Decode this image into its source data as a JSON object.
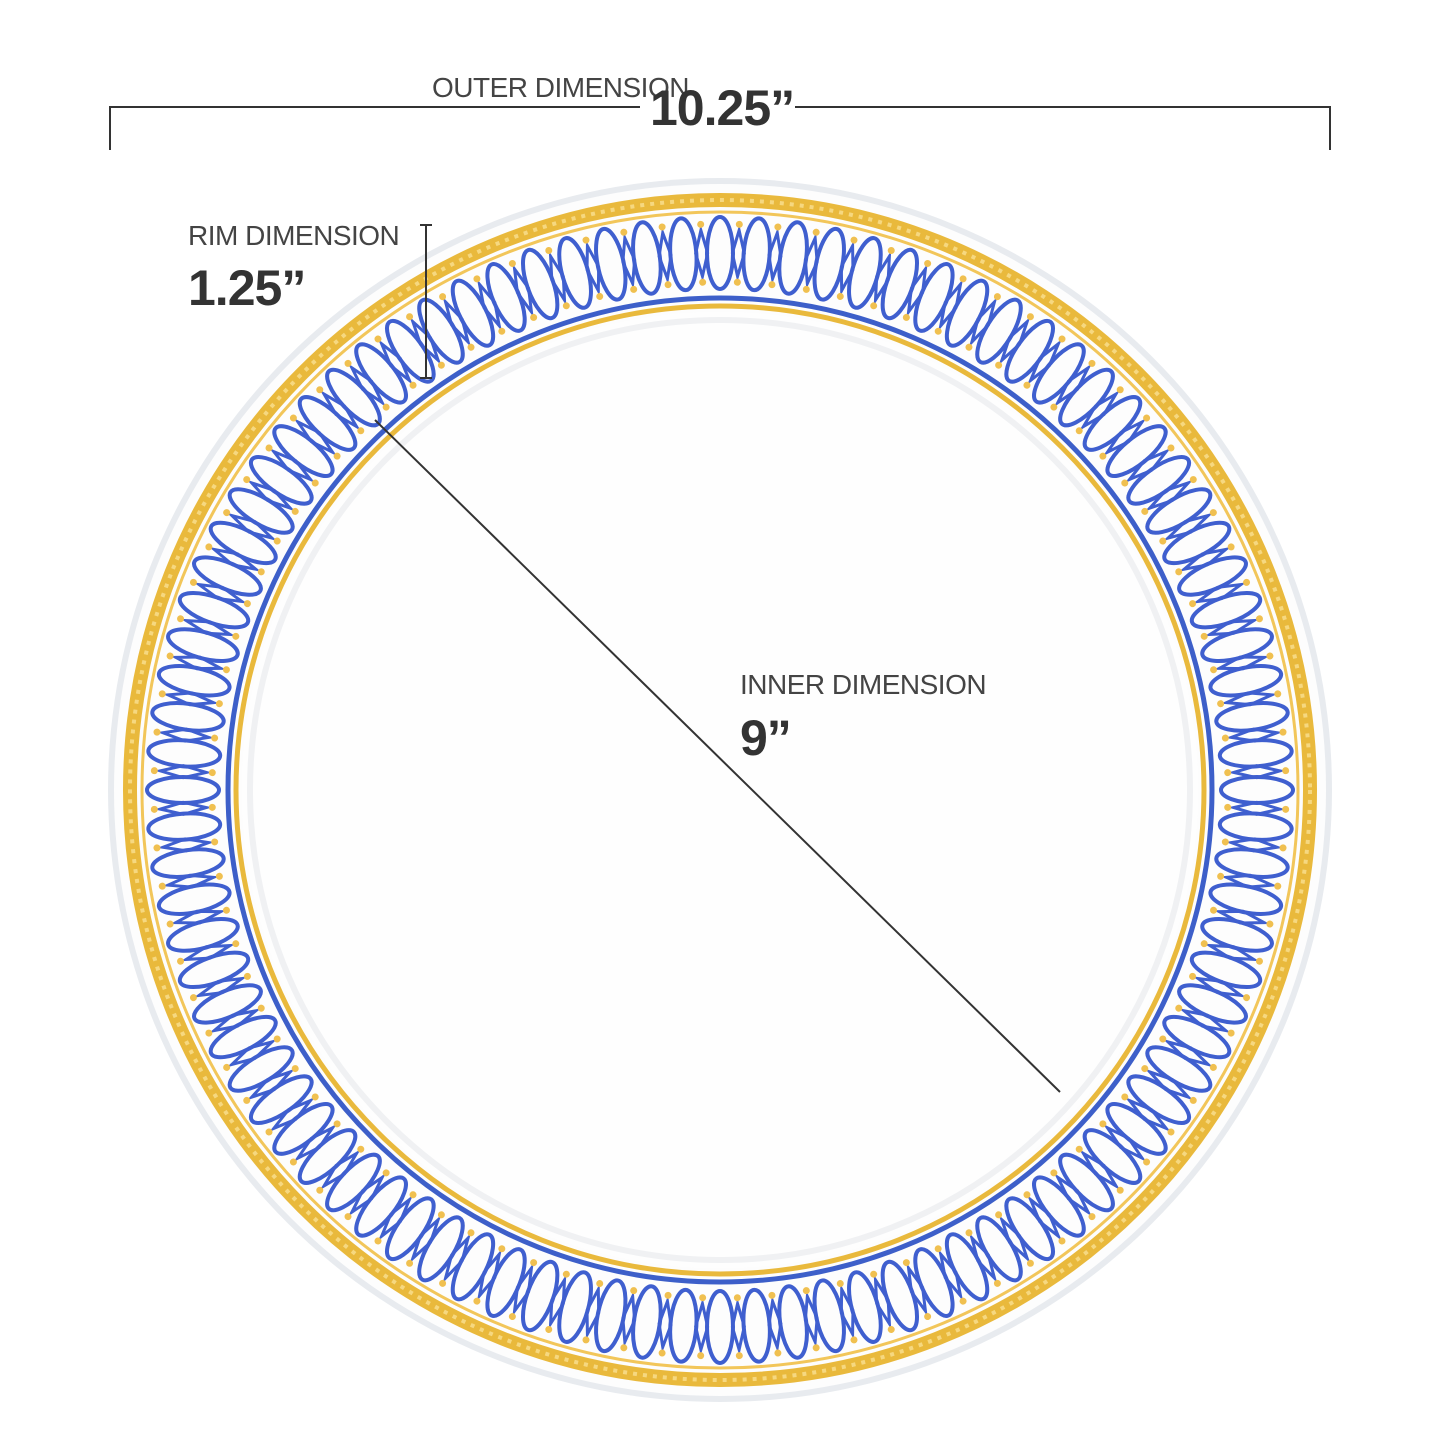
{
  "outer": {
    "label": "OUTER DIMENSION",
    "value": "10.25”"
  },
  "rim": {
    "label": "RIM DIMENSION",
    "value": "1.25”"
  },
  "inner": {
    "label": "INNER DIMENSION",
    "value": "9”"
  }
}
